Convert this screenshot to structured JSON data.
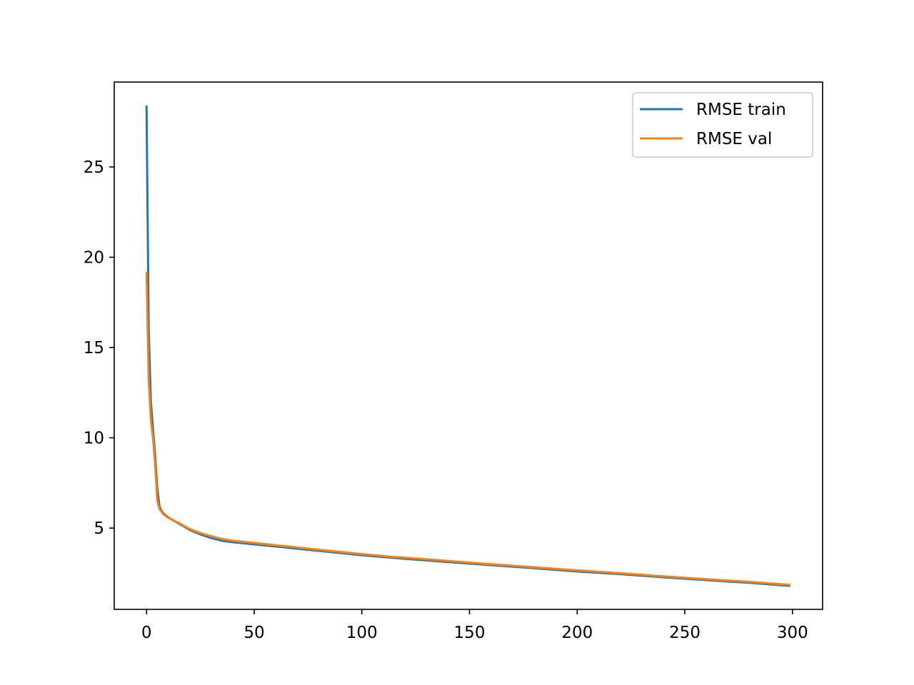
{
  "chart_data": {
    "type": "line",
    "title": "",
    "xlabel": "",
    "ylabel": "",
    "xlim": [
      -15,
      314
    ],
    "ylim": [
      0.5,
      29.7
    ],
    "xticks": [
      0,
      50,
      100,
      150,
      200,
      250,
      300
    ],
    "yticks": [
      5,
      10,
      15,
      20,
      25
    ],
    "grid": false,
    "legend_position": "top-right",
    "series": [
      {
        "name": "RMSE train",
        "color": "#1f77b4",
        "x": [
          0,
          1,
          2,
          3,
          4,
          5,
          6,
          7,
          8,
          10,
          15,
          20,
          25,
          30,
          35,
          40,
          50,
          60,
          70,
          80,
          90,
          100,
          120,
          140,
          160,
          180,
          200,
          220,
          240,
          260,
          280,
          299
        ],
        "y": [
          28.4,
          16.0,
          12.0,
          10.5,
          9.0,
          7.2,
          6.2,
          5.95,
          5.8,
          5.6,
          5.25,
          4.9,
          4.65,
          4.45,
          4.3,
          4.22,
          4.1,
          3.98,
          3.86,
          3.74,
          3.62,
          3.5,
          3.3,
          3.12,
          2.95,
          2.78,
          2.6,
          2.45,
          2.28,
          2.12,
          1.97,
          1.8
        ]
      },
      {
        "name": "RMSE val",
        "color": "#ff7f0e",
        "x": [
          0,
          1,
          2,
          3,
          4,
          5,
          6,
          7,
          8,
          10,
          15,
          20,
          25,
          30,
          35,
          40,
          50,
          60,
          70,
          80,
          90,
          100,
          113,
          120,
          140,
          160,
          180,
          200,
          220,
          240,
          260,
          280,
          299
        ],
        "y": [
          19.2,
          13.2,
          11.0,
          10.0,
          8.5,
          6.5,
          6.05,
          5.9,
          5.75,
          5.58,
          5.28,
          4.95,
          4.72,
          4.55,
          4.4,
          4.3,
          4.18,
          4.05,
          3.93,
          3.8,
          3.68,
          3.56,
          3.42,
          3.36,
          3.18,
          3.0,
          2.83,
          2.66,
          2.5,
          2.33,
          2.17,
          2.02,
          1.86
        ]
      }
    ]
  }
}
